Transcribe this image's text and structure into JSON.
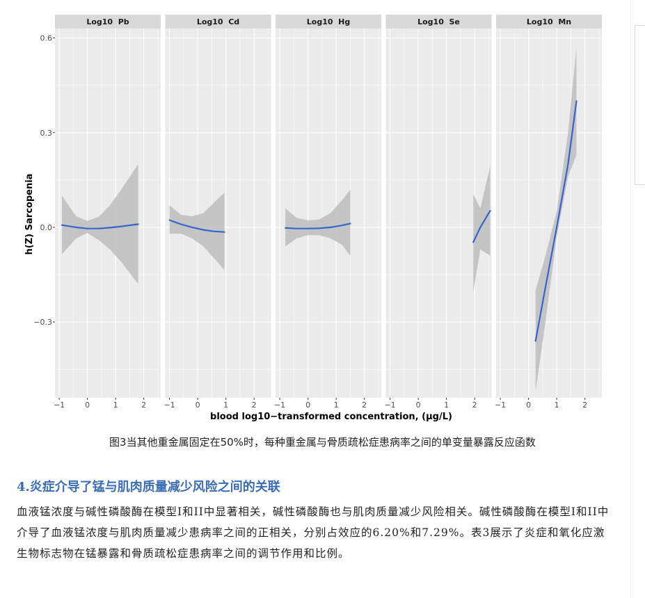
{
  "chart_data": {
    "type": "line",
    "ylabel": "h(Z) Sarcopenia",
    "xlabel": "blood log10−transformed concentration, (µg/L)",
    "ylim": [
      -0.54,
      0.63
    ],
    "y_ticks": [
      -0.3,
      0.0,
      0.3,
      0.6
    ],
    "y_tick_labels": [
      "−0.3",
      "0.0",
      "0.3",
      "0.6"
    ],
    "x_ticks": [
      -1,
      0,
      1,
      2
    ],
    "x_tick_labels": [
      "−1",
      "0",
      "1",
      "2"
    ],
    "xlim": [
      -1.15,
      2.6
    ],
    "grid": true,
    "panels": [
      {
        "name": "Log10  Pb",
        "x": [
          -0.9,
          -0.4,
          0.0,
          0.4,
          0.8,
          1.2,
          1.8
        ],
        "y": [
          0.007,
          0.0,
          -0.004,
          -0.004,
          -0.001,
          0.003,
          0.01
        ],
        "lower": [
          -0.085,
          -0.035,
          -0.018,
          -0.04,
          -0.07,
          -0.11,
          -0.18
        ],
        "upper": [
          0.1,
          0.035,
          0.02,
          0.033,
          0.07,
          0.12,
          0.2
        ]
      },
      {
        "name": "Log10  Cd",
        "x": [
          -1.0,
          -0.6,
          -0.2,
          0.2,
          0.6,
          0.95
        ],
        "y": [
          0.023,
          0.01,
          0.0,
          -0.008,
          -0.013,
          -0.015
        ],
        "lower": [
          -0.02,
          -0.02,
          -0.035,
          -0.06,
          -0.1,
          -0.135
        ],
        "upper": [
          0.07,
          0.04,
          0.035,
          0.045,
          0.08,
          0.11
        ]
      },
      {
        "name": "Log10  Hg",
        "x": [
          -0.8,
          -0.4,
          0.0,
          0.4,
          0.8,
          1.2,
          1.5
        ],
        "y": [
          -0.002,
          -0.004,
          -0.004,
          -0.003,
          0.0,
          0.006,
          0.012
        ],
        "lower": [
          -0.06,
          -0.035,
          -0.025,
          -0.025,
          -0.035,
          -0.055,
          -0.09
        ],
        "upper": [
          0.06,
          0.03,
          0.022,
          0.025,
          0.045,
          0.085,
          0.12
        ]
      },
      {
        "name": "Log10  Se",
        "x": [
          1.95,
          2.2,
          2.55
        ],
        "y": [
          -0.047,
          0.0,
          0.053
        ],
        "lower": [
          -0.205,
          -0.07,
          -0.09
        ],
        "upper": [
          0.105,
          0.06,
          0.195
        ]
      },
      {
        "name": "Log10  Mn",
        "x": [
          0.25,
          0.6,
          1.0,
          1.4,
          1.7
        ],
        "y": [
          -0.36,
          -0.19,
          0.0,
          0.2,
          0.4
        ],
        "lower": [
          -0.52,
          -0.3,
          -0.03,
          0.16,
          0.23
        ],
        "upper": [
          -0.2,
          -0.09,
          0.05,
          0.3,
          0.57
        ]
      }
    ]
  },
  "caption": "图3当其他重金属固定在50%时，每种重金属与骨质疏松症患病率之间的单变量暴露反应函数",
  "section_heading": "4.炎症介导了锰与肌肉质量减少风险之间的关联",
  "paragraph": "血液锰浓度与碱性磷酸酶在模型I和II中显著相关，碱性磷酸酶也与肌肉质量减少风险相关。碱性磷酸酶在模型I和II中介导了血液锰浓度与肌肉质量减少患病率之间的正相关，分别占效应的6.20%和7.29%。表3展示了炎症和氧化应激生物标志物在锰暴露和骨质疏松症患病率之间的调节作用和比例。",
  "colors": {
    "panel_bg": "#ebebeb",
    "strip_bg": "#d9d9d9",
    "line": "#3366cc",
    "ribbon": "#bdbdbd",
    "heading": "#3b6db3"
  }
}
